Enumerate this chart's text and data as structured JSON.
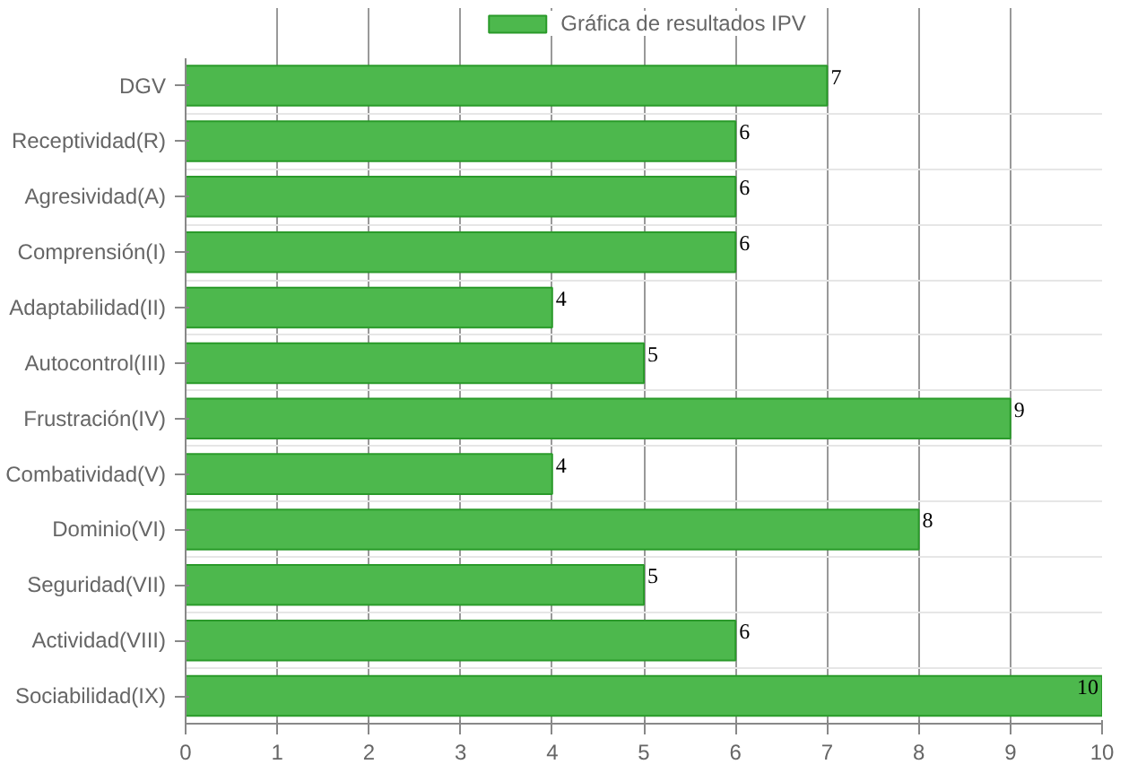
{
  "chart_data": {
    "type": "bar",
    "orientation": "horizontal",
    "categories": [
      "DGV",
      "Receptividad(R)",
      "Agresividad(A)",
      "Comprensión(I)",
      "Adaptabilidad(II)",
      "Autocontrol(III)",
      "Frustración(IV)",
      "Combatividad(V)",
      "Dominio(VI)",
      "Seguridad(VII)",
      "Actividad(VIII)",
      "Sociabilidad(IX)"
    ],
    "series": [
      {
        "name": "Gráfica de resultados IPV",
        "color": "#4db84d",
        "values": [
          7,
          6,
          6,
          6,
          4,
          5,
          9,
          4,
          8,
          5,
          6,
          10
        ]
      }
    ],
    "xlim": [
      0,
      10
    ],
    "xticks": [
      0,
      1,
      2,
      3,
      4,
      5,
      6,
      7,
      8,
      9,
      10
    ],
    "grid": true,
    "legend": "top",
    "data_labels": true
  }
}
